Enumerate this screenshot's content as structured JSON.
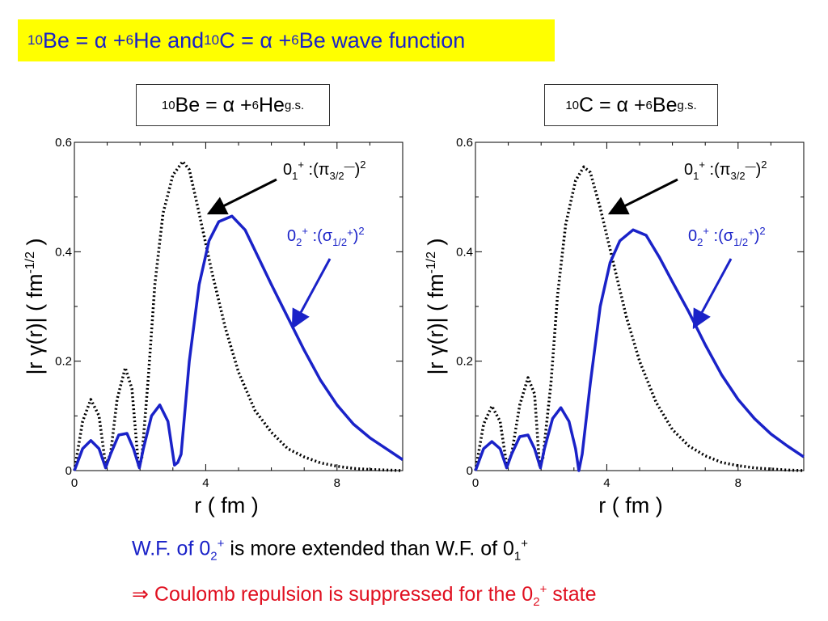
{
  "header": {
    "title_parts": [
      "10",
      "Be = α + ",
      "6",
      "He and ",
      "10",
      "C = α + ",
      "6",
      "Be wave function"
    ]
  },
  "panels": [
    {
      "label_parts": [
        "10",
        "Be = α +",
        "6",
        "He",
        "g.s."
      ],
      "xlabel": "r ( fm )",
      "ylabel": "|r γ(r)|   ( fm",
      "ylabel_exp": "-1/2",
      "ylabel_close": " )",
      "annotation_01": {
        "base": "0",
        "sub": "1",
        "sup": "+",
        "text": " :(π",
        "sub2": "3/2",
        "sup2": "—",
        "close": ")",
        "pow": "2"
      },
      "annotation_02": {
        "base": "0",
        "sub": "2",
        "sup": "+",
        "text": " :(σ",
        "sub2": "1/2",
        "sup2": "+",
        "close": ")",
        "pow": "2"
      }
    },
    {
      "label_parts": [
        "10",
        "C = α +",
        "6",
        "Be",
        "g.s."
      ],
      "xlabel": "r ( fm )",
      "ylabel": "|r γ(r)|   ( fm",
      "ylabel_exp": "-1/2",
      "ylabel_close": " )",
      "annotation_01": {
        "base": "0",
        "sub": "1",
        "sup": "+",
        "text": " :(π",
        "sub2": "3/2",
        "sup2": "—",
        "close": ")",
        "pow": "2"
      },
      "annotation_02": {
        "base": "0",
        "sub": "2",
        "sup": "+",
        "text": " :(σ",
        "sub2": "1/2",
        "sup2": "+",
        "close": ")",
        "pow": "2"
      }
    }
  ],
  "footer": {
    "line1_a": "W.F. of 0",
    "line1_a_sub": "2",
    "line1_a_sup": "+",
    "line1_b": " is more extended than W.F. of 0",
    "line1_b_sub": "1",
    "line1_b_sup": "+",
    "line2": "⇒ Coulomb repulsion is suppressed for the 0",
    "line2_sub": "2",
    "line2_sup": "+",
    "line2_end": " state"
  },
  "colors": {
    "title_bg": "#ffff00",
    "blue": "#1a22c8",
    "red": "#e01020",
    "dotted": "#000000"
  },
  "chart_data": [
    {
      "type": "line",
      "xlim": [
        0,
        10
      ],
      "ylim": [
        0,
        0.6
      ],
      "xticks": [
        0,
        4,
        8
      ],
      "xtick_labels": [
        "0",
        "4",
        "8"
      ],
      "yticks": [
        0,
        0.2,
        0.4,
        0.6
      ],
      "ytick_labels": [
        "0",
        "0.2",
        "0.4",
        "0.6"
      ],
      "series": [
        {
          "name": "0₁⁺ :(π3/2—)²",
          "style": "dotted",
          "x": [
            0,
            0.25,
            0.5,
            0.75,
            0.95,
            1.1,
            1.3,
            1.55,
            1.75,
            1.95,
            2.05,
            2.25,
            2.45,
            2.7,
            3.0,
            3.3,
            3.5,
            3.8,
            4.2,
            4.6,
            5.0,
            5.5,
            6.0,
            6.5,
            7.0,
            7.5,
            8.0,
            8.5,
            9.0,
            9.5,
            10.0
          ],
          "y": [
            0,
            0.09,
            0.13,
            0.1,
            0.01,
            0.03,
            0.13,
            0.188,
            0.15,
            0.01,
            0.02,
            0.17,
            0.34,
            0.47,
            0.54,
            0.565,
            0.55,
            0.47,
            0.36,
            0.26,
            0.18,
            0.11,
            0.07,
            0.04,
            0.025,
            0.014,
            0.008,
            0.004,
            0.002,
            0.001,
            0.0
          ]
        },
        {
          "name": "0₂⁺ :(σ1/2⁺)²",
          "style": "solid",
          "x": [
            0,
            0.25,
            0.5,
            0.75,
            0.95,
            1.1,
            1.35,
            1.6,
            1.8,
            1.98,
            2.1,
            2.35,
            2.6,
            2.85,
            3.05,
            3.15,
            3.25,
            3.5,
            3.8,
            4.1,
            4.4,
            4.8,
            5.2,
            5.6,
            6.0,
            6.5,
            7.0,
            7.5,
            8.0,
            8.5,
            9.0,
            9.5,
            10.0
          ],
          "y": [
            0,
            0.04,
            0.055,
            0.04,
            0.005,
            0.03,
            0.065,
            0.068,
            0.04,
            0.005,
            0.04,
            0.1,
            0.12,
            0.09,
            0.01,
            0.015,
            0.03,
            0.2,
            0.34,
            0.42,
            0.455,
            0.465,
            0.44,
            0.39,
            0.34,
            0.28,
            0.22,
            0.165,
            0.12,
            0.085,
            0.06,
            0.04,
            0.02
          ]
        }
      ]
    },
    {
      "type": "line",
      "xlim": [
        0,
        10
      ],
      "ylim": [
        0,
        0.6
      ],
      "xticks": [
        0,
        4,
        8
      ],
      "xtick_labels": [
        "0",
        "4",
        "8"
      ],
      "yticks": [
        0,
        0.2,
        0.4,
        0.6
      ],
      "ytick_labels": [
        "0",
        "0.2",
        "0.4",
        "0.6"
      ],
      "series": [
        {
          "name": "0₁⁺ :(π3/2—)²",
          "style": "dotted",
          "x": [
            0,
            0.25,
            0.5,
            0.75,
            0.95,
            1.1,
            1.35,
            1.6,
            1.8,
            1.95,
            2.05,
            2.3,
            2.5,
            2.75,
            3.05,
            3.3,
            3.5,
            3.8,
            4.2,
            4.6,
            5.0,
            5.5,
            6.0,
            6.5,
            7.0,
            7.5,
            8.0,
            8.5,
            9.0,
            9.5,
            10.0
          ],
          "y": [
            0,
            0.085,
            0.118,
            0.09,
            0.01,
            0.03,
            0.12,
            0.17,
            0.14,
            0.01,
            0.02,
            0.16,
            0.32,
            0.45,
            0.53,
            0.555,
            0.545,
            0.48,
            0.38,
            0.28,
            0.2,
            0.125,
            0.075,
            0.045,
            0.027,
            0.015,
            0.009,
            0.005,
            0.003,
            0.001,
            0.0
          ]
        },
        {
          "name": "0₂⁺ :(σ1/2⁺)²",
          "style": "solid",
          "x": [
            0,
            0.25,
            0.5,
            0.75,
            0.95,
            1.1,
            1.35,
            1.6,
            1.8,
            1.98,
            2.1,
            2.35,
            2.6,
            2.85,
            3.05,
            3.15,
            3.25,
            3.5,
            3.8,
            4.1,
            4.4,
            4.8,
            5.2,
            5.6,
            6.0,
            6.5,
            7.0,
            7.5,
            8.0,
            8.5,
            9.0,
            9.5,
            10.0
          ],
          "y": [
            0,
            0.04,
            0.053,
            0.04,
            0.005,
            0.03,
            0.062,
            0.065,
            0.04,
            0.005,
            0.04,
            0.095,
            0.115,
            0.09,
            0.04,
            0.0,
            0.03,
            0.16,
            0.3,
            0.38,
            0.42,
            0.44,
            0.43,
            0.39,
            0.345,
            0.29,
            0.23,
            0.175,
            0.13,
            0.095,
            0.067,
            0.045,
            0.025
          ]
        }
      ]
    }
  ]
}
